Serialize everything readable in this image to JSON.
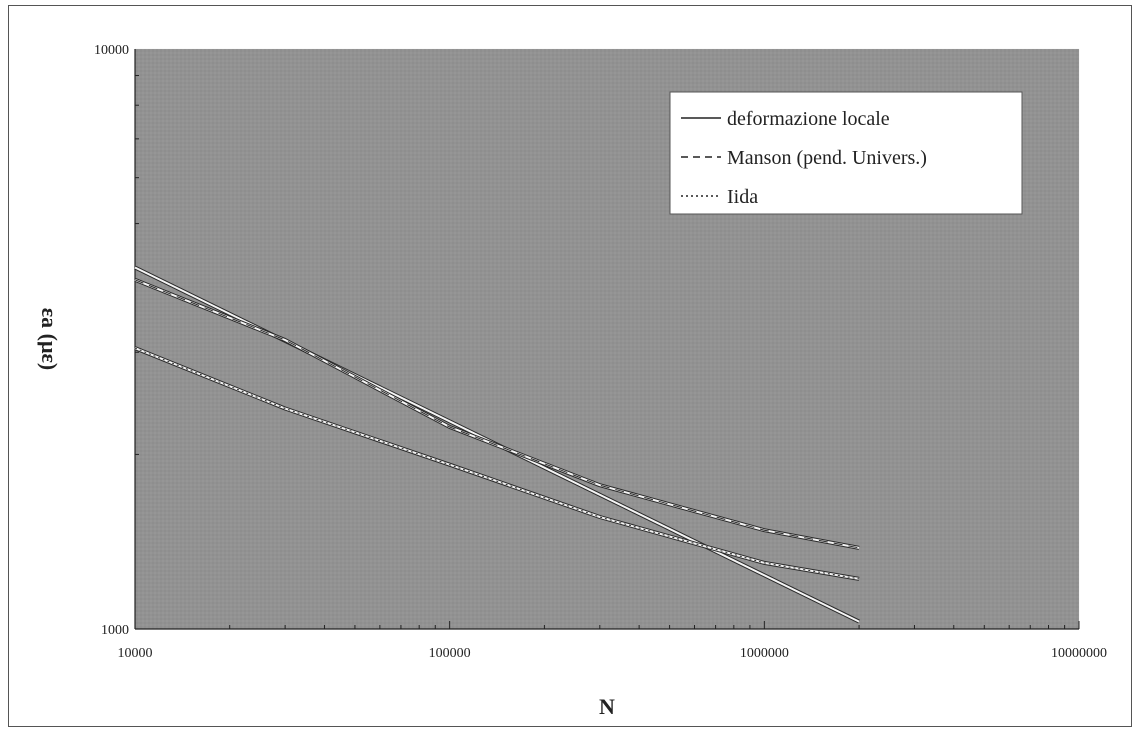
{
  "chart_data": {
    "type": "line",
    "title": "",
    "xlabel": "N",
    "ylabel": "εa (με)",
    "xscale": "log",
    "yscale": "log",
    "xlim": [
      10000,
      10000000
    ],
    "ylim": [
      1000,
      10000
    ],
    "x_ticks": [
      "10000",
      "100000",
      "1000000",
      "10000000"
    ],
    "y_ticks": [
      "1000",
      "10000"
    ],
    "grid": true,
    "legend_position": "top-right",
    "colors": {
      "plot_background": "#8e8e8e",
      "grid": "#bcbcbc",
      "line": "#f4f4f4",
      "line_shadow": "#2a2a2a"
    },
    "series": [
      {
        "name": "deformazione locale",
        "style": "solid",
        "x": [
          10000,
          2000000
        ],
        "y": [
          4200,
          1030
        ]
      },
      {
        "name": "Manson (pend. Univers.)",
        "style": "dashed",
        "x": [
          10000,
          30000,
          100000,
          300000,
          1000000,
          2000000
        ],
        "y": [
          4000,
          3150,
          2230,
          1770,
          1480,
          1380
        ]
      },
      {
        "name": "Iida",
        "style": "dotted",
        "x": [
          10000,
          30000,
          100000,
          300000,
          1000000,
          2000000
        ],
        "y": [
          3050,
          2400,
          1920,
          1560,
          1300,
          1220
        ]
      }
    ]
  }
}
